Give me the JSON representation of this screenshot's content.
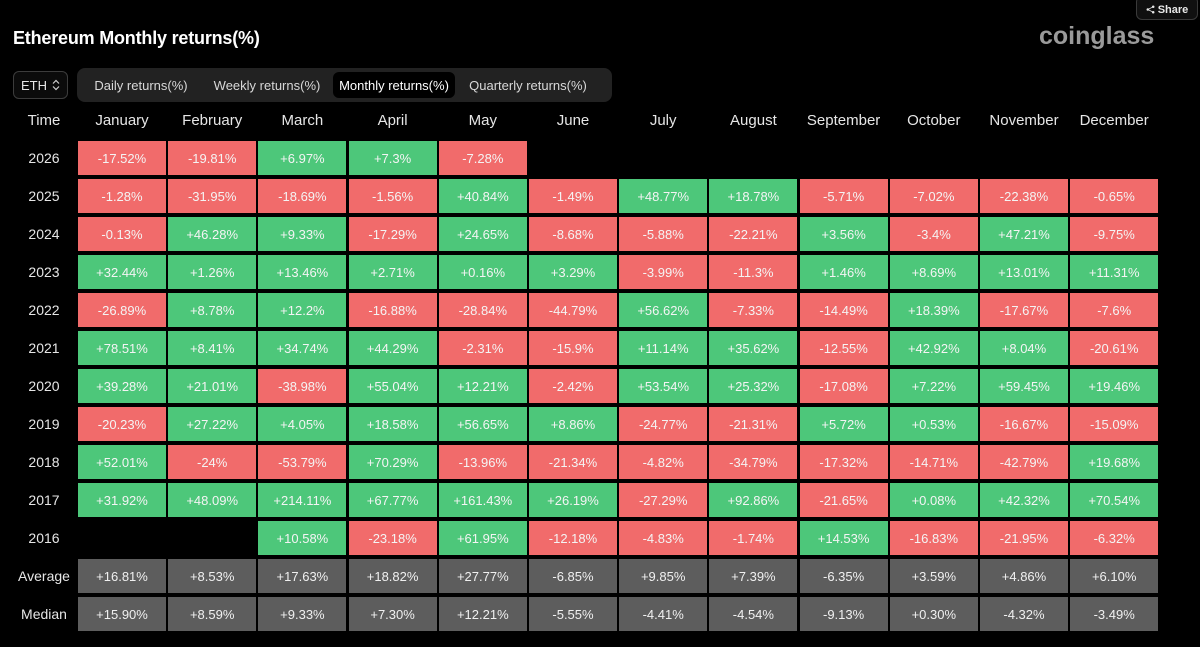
{
  "header": {
    "title": "Ethereum Monthly returns(%)",
    "logo": "coinglass",
    "share_label": "Share"
  },
  "asset_select": {
    "value": "ETH"
  },
  "tabs": [
    {
      "label": "Daily returns(%)",
      "active": false
    },
    {
      "label": "Weekly returns(%)",
      "active": false
    },
    {
      "label": "Monthly returns(%)",
      "active": true
    },
    {
      "label": "Quarterly returns(%)",
      "active": false
    }
  ],
  "colors": {
    "positive": "#4dc77a",
    "negative": "#f16b6b",
    "summary": "#5d5d5d",
    "background": "#000000"
  },
  "chart_data": {
    "type": "heatmap",
    "title": "Ethereum Monthly returns(%)",
    "corner_label": "Time",
    "columns": [
      "January",
      "February",
      "March",
      "April",
      "May",
      "June",
      "July",
      "August",
      "September",
      "October",
      "November",
      "December"
    ],
    "rows": [
      {
        "label": "2026",
        "values": [
          "-17.52%",
          "-19.81%",
          "+6.97%",
          "+7.3%",
          "-7.28%",
          "",
          "",
          "",
          "",
          "",
          "",
          ""
        ]
      },
      {
        "label": "2025",
        "values": [
          "-1.28%",
          "-31.95%",
          "-18.69%",
          "-1.56%",
          "+40.84%",
          "-1.49%",
          "+48.77%",
          "+18.78%",
          "-5.71%",
          "-7.02%",
          "-22.38%",
          "-0.65%"
        ]
      },
      {
        "label": "2024",
        "values": [
          "-0.13%",
          "+46.28%",
          "+9.33%",
          "-17.29%",
          "+24.65%",
          "-8.68%",
          "-5.88%",
          "-22.21%",
          "+3.56%",
          "-3.4%",
          "+47.21%",
          "-9.75%"
        ]
      },
      {
        "label": "2023",
        "values": [
          "+32.44%",
          "+1.26%",
          "+13.46%",
          "+2.71%",
          "+0.16%",
          "+3.29%",
          "-3.99%",
          "-11.3%",
          "+1.46%",
          "+8.69%",
          "+13.01%",
          "+11.31%"
        ]
      },
      {
        "label": "2022",
        "values": [
          "-26.89%",
          "+8.78%",
          "+12.2%",
          "-16.88%",
          "-28.84%",
          "-44.79%",
          "+56.62%",
          "-7.33%",
          "-14.49%",
          "+18.39%",
          "-17.67%",
          "-7.6%"
        ]
      },
      {
        "label": "2021",
        "values": [
          "+78.51%",
          "+8.41%",
          "+34.74%",
          "+44.29%",
          "-2.31%",
          "-15.9%",
          "+11.14%",
          "+35.62%",
          "-12.55%",
          "+42.92%",
          "+8.04%",
          "-20.61%"
        ]
      },
      {
        "label": "2020",
        "values": [
          "+39.28%",
          "+21.01%",
          "-38.98%",
          "+55.04%",
          "+12.21%",
          "-2.42%",
          "+53.54%",
          "+25.32%",
          "-17.08%",
          "+7.22%",
          "+59.45%",
          "+19.46%"
        ]
      },
      {
        "label": "2019",
        "values": [
          "-20.23%",
          "+27.22%",
          "+4.05%",
          "+18.58%",
          "+56.65%",
          "+8.86%",
          "-24.77%",
          "-21.31%",
          "+5.72%",
          "+0.53%",
          "-16.67%",
          "-15.09%"
        ]
      },
      {
        "label": "2018",
        "values": [
          "+52.01%",
          "-24%",
          "-53.79%",
          "+70.29%",
          "-13.96%",
          "-21.34%",
          "-4.82%",
          "-34.79%",
          "-17.32%",
          "-14.71%",
          "-42.79%",
          "+19.68%"
        ]
      },
      {
        "label": "2017",
        "values": [
          "+31.92%",
          "+48.09%",
          "+214.11%",
          "+67.77%",
          "+161.43%",
          "+26.19%",
          "-27.29%",
          "+92.86%",
          "-21.65%",
          "+0.08%",
          "+42.32%",
          "+70.54%"
        ]
      },
      {
        "label": "2016",
        "values": [
          "",
          "",
          "+10.58%",
          "-23.18%",
          "+61.95%",
          "-12.18%",
          "-4.83%",
          "-1.74%",
          "+14.53%",
          "-16.83%",
          "-21.95%",
          "-6.32%"
        ]
      }
    ],
    "summary_rows": [
      {
        "label": "Average",
        "values": [
          "+16.81%",
          "+8.53%",
          "+17.63%",
          "+18.82%",
          "+27.77%",
          "-6.85%",
          "+9.85%",
          "+7.39%",
          "-6.35%",
          "+3.59%",
          "+4.86%",
          "+6.10%"
        ]
      },
      {
        "label": "Median",
        "values": [
          "+15.90%",
          "+8.59%",
          "+9.33%",
          "+7.30%",
          "+12.21%",
          "-5.55%",
          "-4.41%",
          "-4.54%",
          "-9.13%",
          "+0.30%",
          "-4.32%",
          "-3.49%"
        ]
      }
    ]
  }
}
